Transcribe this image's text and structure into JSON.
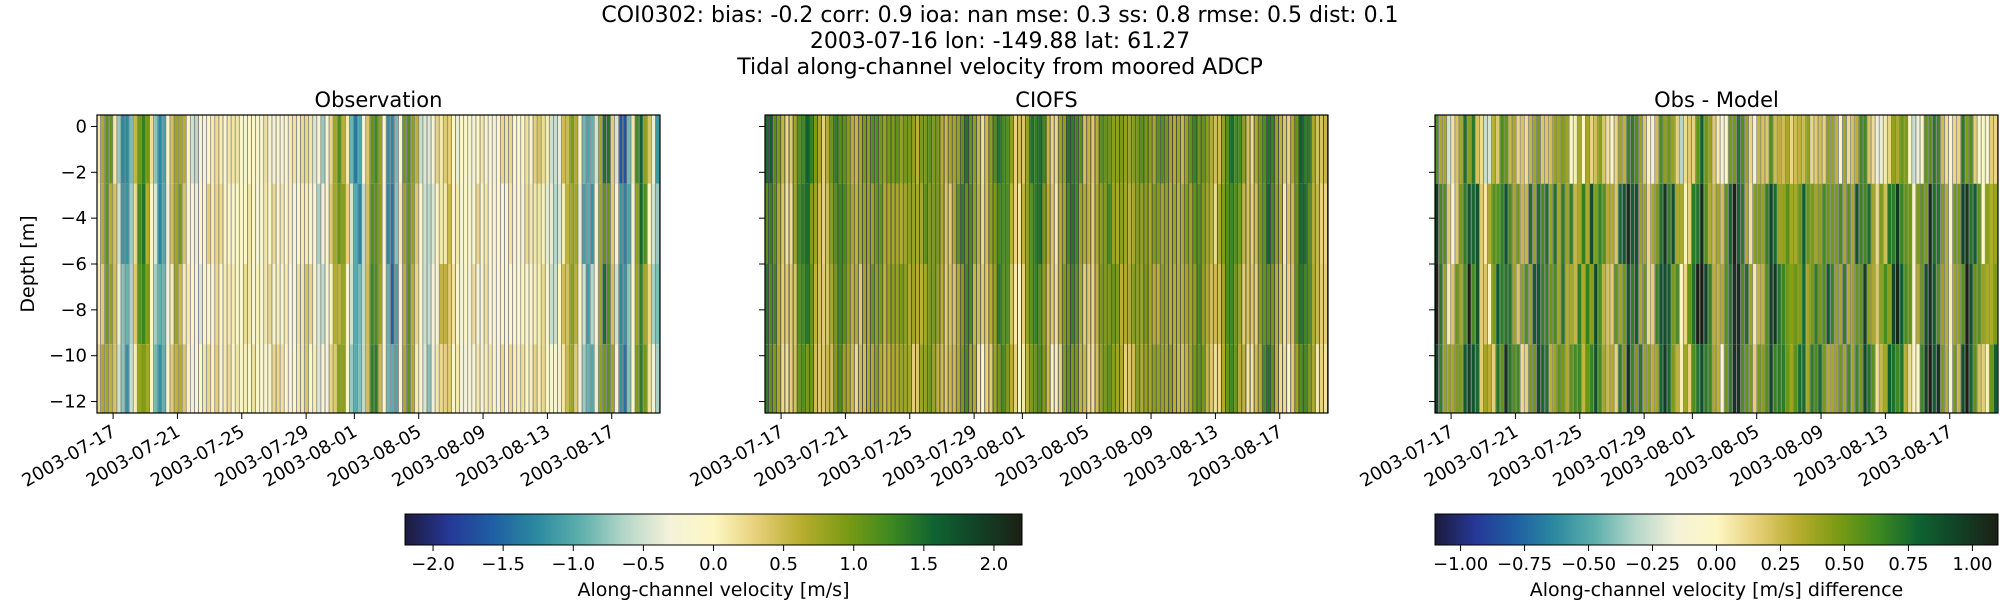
{
  "figure": {
    "title_lines": [
      "COI0302: bias: -0.2  corr: 0.9  ioa: nan  mse: 0.3  ss: 0.8  rmse: 0.5  dist: 0.1",
      "2003-07-16 lon: -149.88 lat: 61.27",
      "Tidal along-channel velocity from moored ADCP"
    ]
  },
  "colors": {
    "cmap": [
      "#1c1a3c",
      "#263896",
      "#1f5fa3",
      "#2c8a9f",
      "#5fb0ad",
      "#b6d7c9",
      "#f4f2d9",
      "#fdf7c4",
      "#e6cf78",
      "#b7ad2e",
      "#7c9b14",
      "#3f8a20",
      "#0f6331",
      "#124227",
      "#1c2014"
    ]
  },
  "chart_data": [
    {
      "type": "heatmap",
      "title": "Observation",
      "ylabel": "Depth [m]",
      "xlabel": "",
      "x_range": [
        "2003-07-16",
        "2003-08-20"
      ],
      "ylim": [
        -12.5,
        0.5
      ],
      "yticks": [
        0,
        -2,
        -4,
        -6,
        -8,
        -10,
        -12
      ],
      "xticks": [
        "2003-07-17",
        "2003-07-21",
        "2003-07-25",
        "2003-07-29",
        "2003-08-01",
        "2003-08-05",
        "2003-08-09",
        "2003-08-13",
        "2003-08-17"
      ],
      "value_range": [
        -2.2,
        2.2
      ],
      "pattern": "tidal-stripes"
    },
    {
      "type": "heatmap",
      "title": "CIOFS",
      "ylabel": "",
      "xlabel": "",
      "x_range": [
        "2003-07-16",
        "2003-08-20"
      ],
      "ylim": [
        -12.5,
        0.5
      ],
      "yticks": [
        0,
        -2,
        -4,
        -6,
        -8,
        -10,
        -12
      ],
      "xticks": [
        "2003-07-17",
        "2003-07-21",
        "2003-07-25",
        "2003-07-29",
        "2003-08-01",
        "2003-08-05",
        "2003-08-09",
        "2003-08-13",
        "2003-08-17"
      ],
      "value_range": [
        -2.2,
        2.2
      ],
      "pattern": "tidal-stripes-banded"
    },
    {
      "type": "heatmap",
      "title": "Obs - Model",
      "ylabel": "",
      "xlabel": "",
      "x_range": [
        "2003-07-16",
        "2003-08-20"
      ],
      "ylim": [
        -12.5,
        0.5
      ],
      "yticks": [
        0,
        -2,
        -4,
        -6,
        -8,
        -10,
        -12
      ],
      "xticks": [
        "2003-07-17",
        "2003-07-21",
        "2003-07-25",
        "2003-07-29",
        "2003-08-01",
        "2003-08-05",
        "2003-08-09",
        "2003-08-13",
        "2003-08-17"
      ],
      "value_range": [
        -1.1,
        1.1
      ],
      "pattern": "difference-stripes"
    }
  ],
  "colorbars": [
    {
      "label": "Along-channel velocity [m/s]",
      "range": [
        -2.2,
        2.2
      ],
      "ticks": [
        -2.0,
        -1.5,
        -1.0,
        -0.5,
        0.0,
        0.5,
        1.0,
        1.5,
        2.0
      ],
      "tick_labels": [
        "−2.0",
        "−1.5",
        "−1.0",
        "−0.5",
        "0.0",
        "0.5",
        "1.0",
        "1.5",
        "2.0"
      ]
    },
    {
      "label": "Along-channel velocity [m/s] difference",
      "range": [
        -1.1,
        1.1
      ],
      "ticks": [
        -1.0,
        -0.75,
        -0.5,
        -0.25,
        0.0,
        0.25,
        0.5,
        0.75,
        1.0
      ],
      "tick_labels": [
        "−1.00",
        "−0.75",
        "−0.50",
        "−0.25",
        "0.00",
        "0.25",
        "0.50",
        "0.75",
        "1.00"
      ]
    }
  ]
}
